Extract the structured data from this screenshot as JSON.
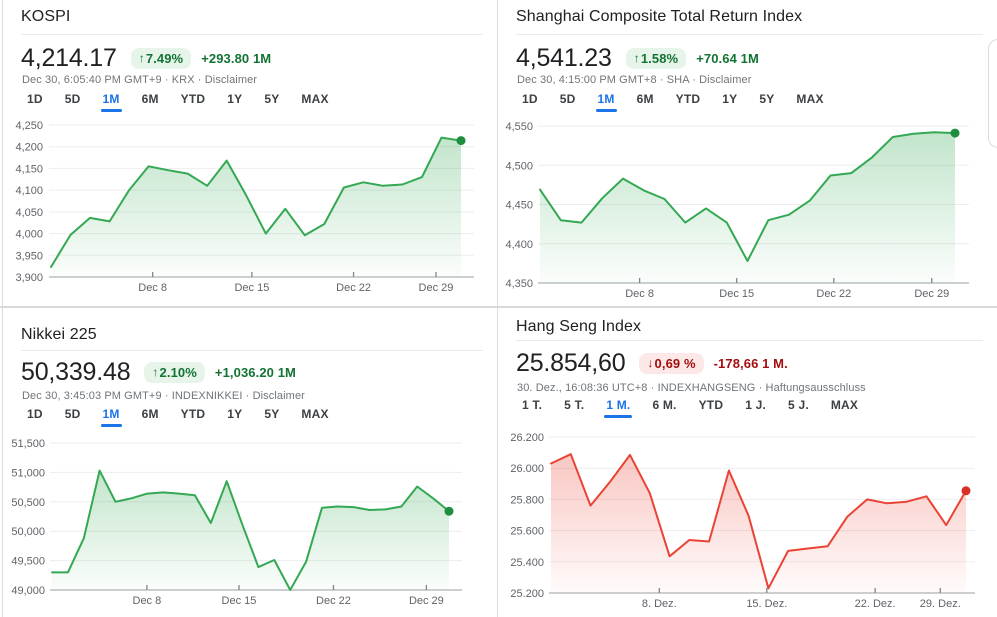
{
  "colors": {
    "positive": "#137333",
    "positive_bg": "#e6f4ea",
    "negative": "#a50e0e",
    "negative_bg": "#fce8e6",
    "tab_selected": "#1a73e8",
    "line_up": "#34a853",
    "line_down": "#ea4335",
    "axis_text": "#5f6368",
    "grid": "#ededee",
    "baseline": "#9aa0a6"
  },
  "icons": {
    "arrow_up": "↑",
    "arrow_down": "↓"
  },
  "panels": [
    {
      "title": "KOSPI",
      "price": "4,214.17",
      "trend": "up",
      "badge_percent": "7.49%",
      "change": "+293.80 1M",
      "timestamp": "Dec 30, 6:05:40 PM GMT+9 · KRX ·",
      "disclaimer": "Disclaimer",
      "tabs": [
        "1D",
        "5D",
        "1M",
        "6M",
        "YTD",
        "1Y",
        "5Y",
        "MAX"
      ],
      "selected_tab": "1M"
    },
    {
      "title": "Shanghai Composite Total Return Index",
      "price": "4,541.23",
      "trend": "up",
      "badge_percent": "1.58%",
      "change": "+70.64 1M",
      "timestamp": "Dec 30, 4:15:00 PM GMT+8 · SHA ·",
      "disclaimer": "Disclaimer",
      "tabs": [
        "1D",
        "5D",
        "1M",
        "6M",
        "YTD",
        "1Y",
        "5Y",
        "MAX"
      ],
      "selected_tab": "1M"
    },
    {
      "title": "Nikkei 225",
      "price": "50,339.48",
      "trend": "up",
      "badge_percent": "2.10%",
      "change": "+1,036.20 1M",
      "timestamp": "Dec 30, 3:45:03 PM GMT+9 · INDEXNIKKEI ·",
      "disclaimer": "Disclaimer",
      "tabs": [
        "1D",
        "5D",
        "1M",
        "6M",
        "YTD",
        "1Y",
        "5Y",
        "MAX"
      ],
      "selected_tab": "1M"
    },
    {
      "title": "Hang Seng Index",
      "price": "25.854,60",
      "trend": "down",
      "badge_percent": "0,69 %",
      "change": "-178,66 1 M.",
      "timestamp": "30. Dez., 16:08:36 UTC+8 · INDEXHANGSENG ·",
      "disclaimer": "Haftungsausschluss",
      "tabs": [
        "1 T.",
        "5 T.",
        "1 M.",
        "6 M.",
        "YTD",
        "1 J.",
        "5 J.",
        "MAX"
      ],
      "selected_tab": "1 M."
    }
  ],
  "chart_data": [
    {
      "type": "area",
      "title": "KOSPI 1M",
      "color": "#34a853",
      "dot_color": "#1e8e3e",
      "ylim": [
        3900,
        4250
      ],
      "yticks": [
        3900,
        3950,
        4000,
        4050,
        4100,
        4150,
        4200,
        4250
      ],
      "ytick_labels": [
        "3,900",
        "3,950",
        "4,000",
        "4,050",
        "4,100",
        "4,150",
        "4,200",
        "4,250"
      ],
      "values": [
        3923,
        3997,
        4036,
        4028,
        4100,
        4155,
        4146,
        4138,
        4110,
        4168,
        4088,
        4000,
        4057,
        3996,
        4022,
        4106,
        4118,
        4110,
        4113,
        4130,
        4221,
        4214
      ],
      "xticks": [
        {
          "label": "Dec 8",
          "pos": 0.248
        },
        {
          "label": "Dec 15",
          "pos": 0.49
        },
        {
          "label": "Dec 22",
          "pos": 0.738
        },
        {
          "label": "Dec 29",
          "pos": 0.939
        }
      ],
      "xlabel": "",
      "ylabel": ""
    },
    {
      "type": "area",
      "title": "Shanghai Composite Total Return Index 1M",
      "color": "#34a853",
      "dot_color": "#1e8e3e",
      "ylim": [
        4350,
        4550
      ],
      "yticks": [
        4350,
        4400,
        4450,
        4500,
        4550
      ],
      "ytick_labels": [
        "4,350",
        "4,400",
        "4,450",
        "4,500",
        "4,550"
      ],
      "values": [
        4469,
        4430,
        4427,
        4458,
        4483,
        4468,
        4457,
        4427,
        4445,
        4427,
        4378,
        4430,
        4437,
        4455,
        4487,
        4490,
        4510,
        4536,
        4540,
        4542,
        4541
      ],
      "xticks": [
        {
          "label": "Dec 8",
          "pos": 0.24
        },
        {
          "label": "Dec 15",
          "pos": 0.474
        },
        {
          "label": "Dec 22",
          "pos": 0.708
        },
        {
          "label": "Dec 29",
          "pos": 0.944
        }
      ],
      "xlabel": "",
      "ylabel": ""
    },
    {
      "type": "area",
      "title": "Nikkei 225 1M",
      "color": "#34a853",
      "dot_color": "#1e8e3e",
      "ylim": [
        49000,
        51500
      ],
      "yticks": [
        49000,
        49500,
        50000,
        50500,
        51000,
        51500
      ],
      "ytick_labels": [
        "49,000",
        "49,500",
        "50,000",
        "50,500",
        "51,000",
        "51,500"
      ],
      "values": [
        49300,
        49300,
        49880,
        51030,
        50500,
        50560,
        50640,
        50660,
        50640,
        50610,
        50140,
        50850,
        50100,
        49390,
        49510,
        49000,
        49480,
        50400,
        50420,
        50410,
        50360,
        50370,
        50420,
        50760,
        50560,
        50340
      ],
      "xticks": [
        {
          "label": "Dec 8",
          "pos": 0.239
        },
        {
          "label": "Dec 15",
          "pos": 0.471
        },
        {
          "label": "Dec 22",
          "pos": 0.709
        },
        {
          "label": "Dec 29",
          "pos": 0.943
        }
      ],
      "xlabel": "",
      "ylabel": ""
    },
    {
      "type": "area",
      "title": "Hang Seng Index 1M",
      "color": "#ea4335",
      "dot_color": "#d93025",
      "ylim": [
        25200,
        26200
      ],
      "yticks": [
        25200,
        25400,
        25600,
        25800,
        26000,
        26200
      ],
      "ytick_labels": [
        "25.200",
        "25.400",
        "25.600",
        "25.800",
        "26.000",
        "26.200"
      ],
      "values": [
        26030,
        26090,
        25760,
        25915,
        26085,
        25840,
        25435,
        25540,
        25530,
        25985,
        25695,
        25230,
        25470,
        25485,
        25500,
        25690,
        25800,
        25775,
        25785,
        25820,
        25635,
        25855
      ],
      "xticks": [
        {
          "label": "8. Dez.",
          "pos": 0.261
        },
        {
          "label": "15. Dez.",
          "pos": 0.52
        },
        {
          "label": "22. Dez.",
          "pos": 0.781
        },
        {
          "label": "29. Dez.",
          "pos": 0.938
        }
      ],
      "xlabel": "",
      "ylabel": ""
    }
  ]
}
